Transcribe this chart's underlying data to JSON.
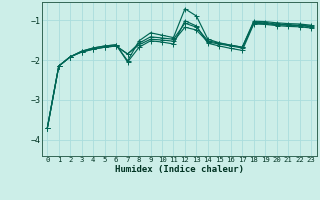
{
  "xlabel": "Humidex (Indice chaleur)",
  "bg_color": "#cceee8",
  "grid_color": "#aadddd",
  "line_color": "#006655",
  "xlim": [
    -0.5,
    23.5
  ],
  "ylim": [
    -4.4,
    -0.55
  ],
  "yticks": [
    -4,
    -3,
    -2,
    -1
  ],
  "xticks": [
    0,
    1,
    2,
    3,
    4,
    5,
    6,
    7,
    8,
    9,
    10,
    11,
    12,
    13,
    14,
    15,
    16,
    17,
    18,
    19,
    20,
    21,
    22,
    23
  ],
  "x": [
    0,
    1,
    2,
    3,
    4,
    5,
    6,
    7,
    8,
    9,
    10,
    11,
    12,
    13,
    14,
    15,
    16,
    17,
    18,
    19,
    20,
    21,
    22,
    23
  ],
  "line1_y": [
    -3.7,
    -2.15,
    -1.92,
    -1.8,
    -1.73,
    -1.68,
    -1.65,
    -1.85,
    -1.62,
    -1.48,
    -1.5,
    -1.53,
    -1.18,
    -1.25,
    -1.55,
    -1.6,
    -1.65,
    -1.7,
    -1.08,
    -1.09,
    -1.12,
    -1.13,
    -1.14,
    -1.17
  ],
  "line2_y": [
    -3.7,
    -2.15,
    -1.92,
    -1.8,
    -1.73,
    -1.68,
    -1.65,
    -1.85,
    -1.58,
    -1.42,
    -1.45,
    -1.48,
    -1.08,
    -1.18,
    -1.52,
    -1.58,
    -1.63,
    -1.68,
    -1.06,
    -1.07,
    -1.1,
    -1.12,
    -1.13,
    -1.15
  ],
  "line3_y": [
    -3.7,
    -2.15,
    -1.92,
    -1.78,
    -1.7,
    -1.65,
    -1.62,
    -2.02,
    -1.52,
    -1.32,
    -1.38,
    -1.44,
    -0.72,
    -0.9,
    -1.48,
    -1.57,
    -1.63,
    -1.68,
    -1.03,
    -1.04,
    -1.07,
    -1.09,
    -1.1,
    -1.13
  ],
  "line4_y": [
    -3.7,
    -2.15,
    -1.92,
    -1.78,
    -1.7,
    -1.65,
    -1.62,
    -2.05,
    -1.68,
    -1.52,
    -1.55,
    -1.6,
    -1.02,
    -1.15,
    -1.58,
    -1.65,
    -1.71,
    -1.76,
    -1.1,
    -1.11,
    -1.14,
    -1.16,
    -1.17,
    -1.2
  ]
}
